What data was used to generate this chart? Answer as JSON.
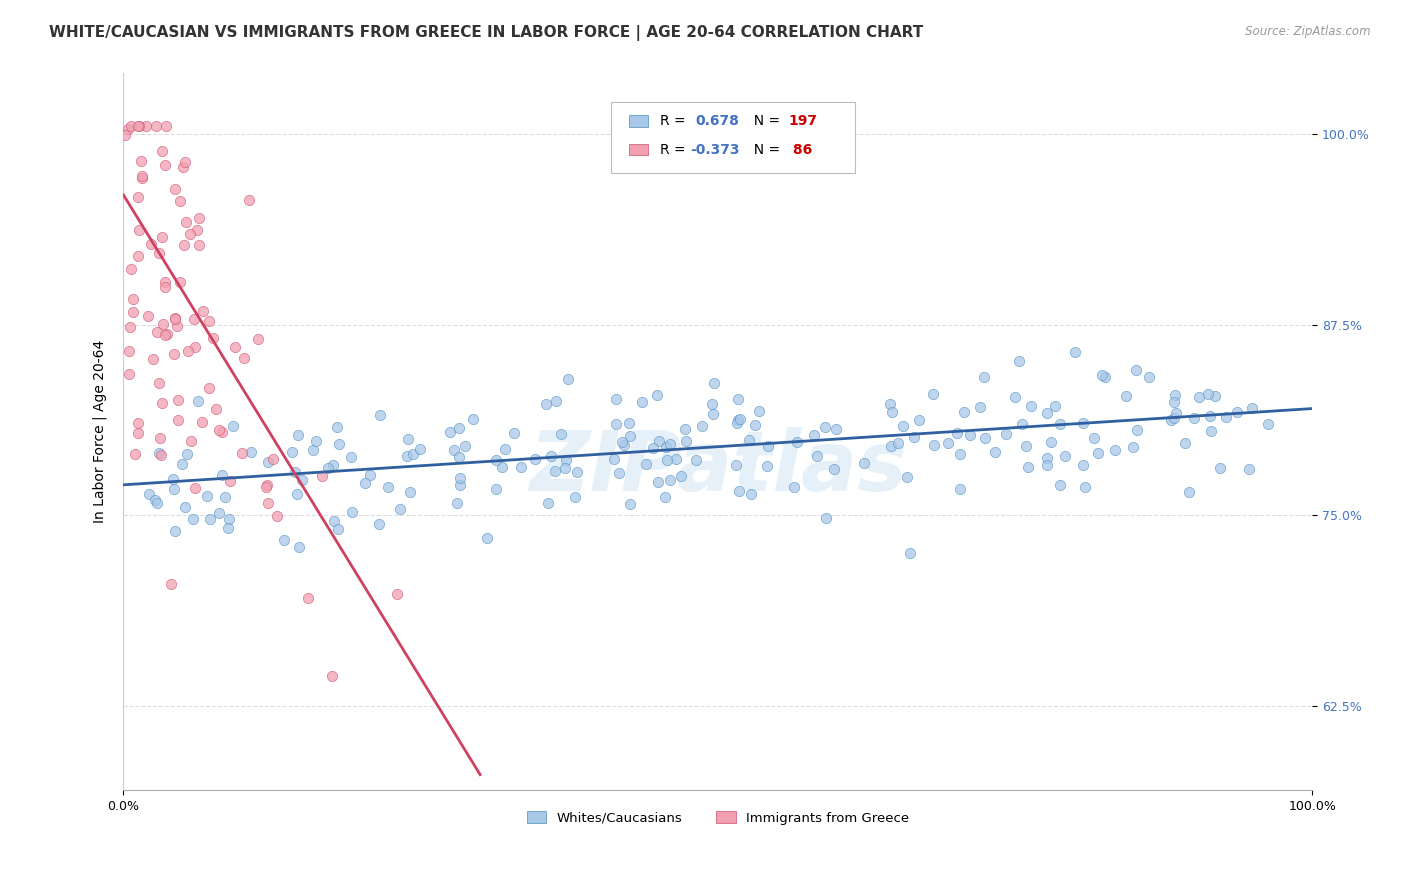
{
  "title": "WHITE/CAUCASIAN VS IMMIGRANTS FROM GREECE IN LABOR FORCE | AGE 20-64 CORRELATION CHART",
  "source": "Source: ZipAtlas.com",
  "ylabel": "In Labor Force | Age 20-64",
  "xlim": [
    0.0,
    1.0
  ],
  "ylim": [
    0.57,
    1.04
  ],
  "yticks": [
    0.625,
    0.75,
    0.875,
    1.0
  ],
  "ytick_labels": [
    "62.5%",
    "75.0%",
    "87.5%",
    "100.0%"
  ],
  "xticks": [
    0.0,
    1.0
  ],
  "xtick_labels": [
    "0.0%",
    "100.0%"
  ],
  "blue_R": 0.678,
  "blue_N": 197,
  "pink_R": -0.373,
  "pink_N": 86,
  "blue_color": "#a8c8e8",
  "blue_edge_color": "#5090c0",
  "blue_line_color": "#3060a0",
  "pink_color": "#f0a0b0",
  "pink_edge_color": "#d05070",
  "pink_line_color": "#d04060",
  "watermark": "ZIPatlas",
  "legend_label_blue": "Whites/Caucasians",
  "legend_label_pink": "Immigrants from Greece",
  "blue_trend_x": [
    0.0,
    1.0
  ],
  "blue_trend_y": [
    0.77,
    0.82
  ],
  "pink_trend_x": [
    0.0,
    0.3
  ],
  "pink_trend_y": [
    0.96,
    0.58
  ],
  "title_fontsize": 11,
  "axis_fontsize": 9,
  "background_color": "#ffffff",
  "grid_color": "#dddddd",
  "r_color": "#4472C4",
  "n_color": "#CC0000"
}
